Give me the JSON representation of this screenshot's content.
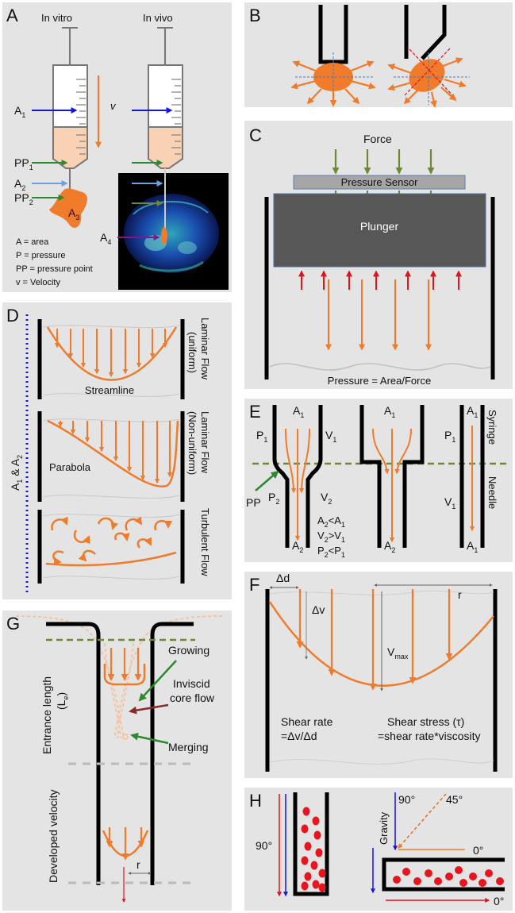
{
  "panels": {
    "A": {
      "letter": "A",
      "in_vitro": "In vitro",
      "in_vivo": "In vivo",
      "v": "v",
      "A1": "A",
      "A1_sub": "1",
      "PP1": "PP",
      "PP1_sub": "1",
      "A2": "A",
      "A2_sub": "2",
      "PP2": "PP",
      "PP2_sub": "2",
      "A3": "A",
      "A3_sub": "3",
      "A4": "A",
      "A4_sub": "4",
      "legend": [
        "A = area",
        "P = pressure",
        "PP = pressure point",
        "v = Velocity"
      ]
    },
    "B": {
      "letter": "B"
    },
    "C": {
      "letter": "C",
      "force": "Force",
      "sensor": "Pressure Sensor",
      "plunger": "Plunger",
      "caption": "Pressure = Area/Force"
    },
    "D": {
      "letter": "D",
      "side_label": "A",
      "side_sub1": "1",
      "side_amp": " & A",
      "side_sub2": "2",
      "streamline": "Streamline",
      "parabola": "Parabola",
      "flow1a": "Laminar Flow",
      "flow1b": "(uniform)",
      "flow2a": "Laminar Flow",
      "flow2b": "(Non-uniform)",
      "flow3": "Turbulent Flow"
    },
    "E": {
      "letter": "E",
      "A1a": "A",
      "A1a_sub": "1",
      "P1a": "P",
      "P1a_sub": "1",
      "V1a": "V",
      "V1a_sub": "1",
      "P2": "P",
      "P2_sub": "2",
      "V2": "V",
      "V2_sub": "2",
      "A2a": "A",
      "A2a_sub": "2",
      "PP": "PP",
      "rel1": "A",
      "rel1_s1": "2",
      "rel1_m": "<A",
      "rel1_s2": "1",
      "rel2": "V",
      "rel2_s1": "2",
      "rel2_m": ">V",
      "rel2_s2": "1",
      "rel3": "P",
      "rel3_s1": "2",
      "rel3_m": "<P",
      "rel3_s2": "1",
      "A1b": "A",
      "A1b_sub": "1",
      "A2b": "A",
      "A2b_sub": "2",
      "A1c": "A",
      "A1c_sub": "1",
      "P1c": "P",
      "P1c_sub": "1",
      "V1c": "V",
      "V1c_sub": "1",
      "A1d": "A",
      "A1d_sub": "1",
      "syringe": "Syringe",
      "needle": "Needle"
    },
    "F": {
      "letter": "F",
      "dd": "Δd",
      "dv": "Δv",
      "r": "r",
      "vmax": "V",
      "vmax_sub": "max",
      "shear_rate1": "Shear rate",
      "shear_rate2": "=Δv/Δd",
      "shear_stress1": "Shear stress (τ)",
      "shear_stress2": "=shear rate*viscosity"
    },
    "G": {
      "letter": "G",
      "growing": "Growing",
      "inviscid1": "Inviscid",
      "inviscid2": "core flow",
      "merging": "Merging",
      "entrance1": "Entrance length",
      "entrance2": "(L",
      "entrance2_sub": "e",
      "entrance2_end": ")",
      "developed": "Developed velocity",
      "r": "r"
    },
    "H": {
      "letter": "H",
      "deg90a": "90°",
      "deg90b": "90°",
      "deg45": "45°",
      "deg0a": "0°",
      "deg0b": "0°",
      "gravity": "Gravity"
    }
  },
  "colors": {
    "orange": "#f07b2b",
    "panel": "#e4e4e4",
    "blue": "#1515e0",
    "lightblue": "#6e9fe0",
    "green": "#2c8a2c",
    "olive": "#6d8a33",
    "red": "#e0141e",
    "purple": "#7a1a8a",
    "dark": "#555555"
  }
}
